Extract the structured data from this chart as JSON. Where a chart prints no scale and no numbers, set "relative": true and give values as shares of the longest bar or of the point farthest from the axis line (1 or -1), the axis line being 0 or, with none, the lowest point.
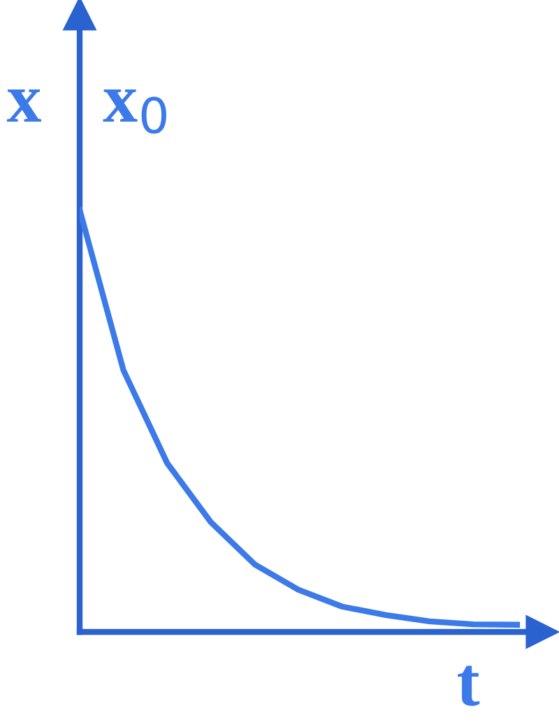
{
  "chart_data": {
    "type": "line",
    "relative": true,
    "ylabel": "x",
    "xlabel": "t",
    "annotations": [
      "x$_{0}$"
    ],
    "categories": [
      null,
      null,
      null,
      null,
      null,
      null,
      null,
      null,
      null,
      null,
      null
    ],
    "series": [
      {
        "color": "#3b7ae8",
        "values": [
          1,
          0.62,
          0.4,
          0.26,
          0.16,
          0.1,
          0.06,
          0.04,
          0.025,
          0.018,
          0.017
        ]
      }
    ],
    "grid": false,
    "legend": false,
    "marker": "none",
    "line_style": "solid"
  }
}
